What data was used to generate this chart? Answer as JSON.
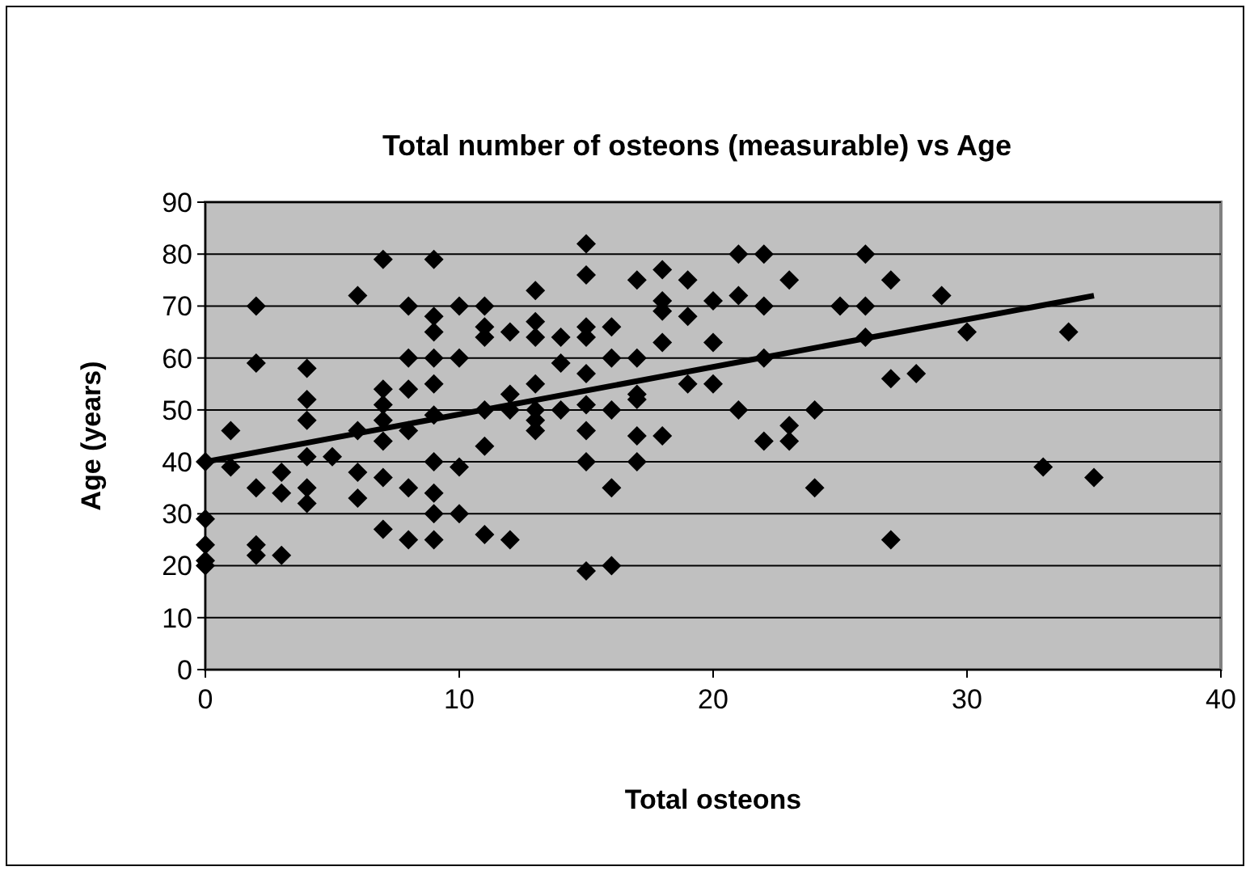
{
  "chart_data": {
    "type": "scatter",
    "title": "Total number of osteons (measurable) vs Age",
    "xlabel": "Total osteons",
    "ylabel": "Age (years)",
    "xlim": [
      0,
      40
    ],
    "xticks": [
      0,
      10,
      20,
      30,
      40
    ],
    "ylim": [
      0,
      90
    ],
    "yticks": [
      0,
      10,
      20,
      30,
      40,
      50,
      60,
      70,
      80,
      90
    ],
    "grid": "y",
    "series": [
      {
        "color": "#000000",
        "marker": "diamond",
        "x": [
          0,
          0,
          0,
          0,
          0,
          1,
          1,
          2,
          2,
          2,
          2,
          2,
          3,
          3,
          3,
          4,
          4,
          4,
          4,
          4,
          4,
          5,
          6,
          6,
          6,
          6,
          7,
          7,
          7,
          7,
          7,
          7,
          7,
          8,
          8,
          8,
          8,
          8,
          8,
          9,
          9,
          9,
          9,
          9,
          9,
          9,
          9,
          9,
          9,
          10,
          10,
          10,
          10,
          11,
          11,
          11,
          11,
          11,
          11,
          12,
          12,
          12,
          12,
          13,
          13,
          13,
          13,
          13,
          13,
          13,
          14,
          14,
          14,
          15,
          15,
          15,
          15,
          15,
          15,
          15,
          15,
          15,
          16,
          16,
          16,
          16,
          16,
          17,
          17,
          17,
          17,
          17,
          17,
          18,
          18,
          18,
          18,
          18,
          19,
          19,
          19,
          20,
          20,
          20,
          21,
          21,
          21,
          22,
          22,
          22,
          22,
          23,
          23,
          23,
          24,
          24,
          25,
          26,
          26,
          26,
          27,
          27,
          27,
          28,
          29,
          30,
          33,
          34,
          35
        ],
        "values": [
          40,
          29,
          24,
          21,
          20,
          46,
          39,
          70,
          59,
          35,
          24,
          22,
          38,
          34,
          22,
          58,
          52,
          48,
          41,
          35,
          32,
          41,
          72,
          46,
          38,
          33,
          79,
          54,
          51,
          48,
          44,
          37,
          27,
          70,
          60,
          54,
          46,
          35,
          25,
          79,
          68,
          65,
          60,
          55,
          49,
          40,
          34,
          30,
          25,
          70,
          60,
          39,
          30,
          70,
          66,
          64,
          50,
          43,
          26,
          65,
          53,
          50,
          25,
          73,
          67,
          64,
          55,
          50,
          48,
          46,
          64,
          59,
          50,
          82,
          76,
          66,
          64,
          57,
          51,
          46,
          40,
          19,
          66,
          60,
          50,
          35,
          20,
          75,
          60,
          53,
          52,
          45,
          40,
          77,
          71,
          69,
          63,
          45,
          75,
          68,
          55,
          71,
          63,
          55,
          80,
          72,
          50,
          80,
          70,
          60,
          44,
          75,
          47,
          44,
          50,
          35,
          70,
          80,
          70,
          64,
          75,
          56,
          25,
          57,
          72,
          65,
          39,
          65,
          37
        ]
      },
      {
        "type": "line",
        "color": "#000000",
        "marker": "none",
        "x": [
          0,
          35
        ],
        "values": [
          40,
          72
        ]
      }
    ]
  }
}
